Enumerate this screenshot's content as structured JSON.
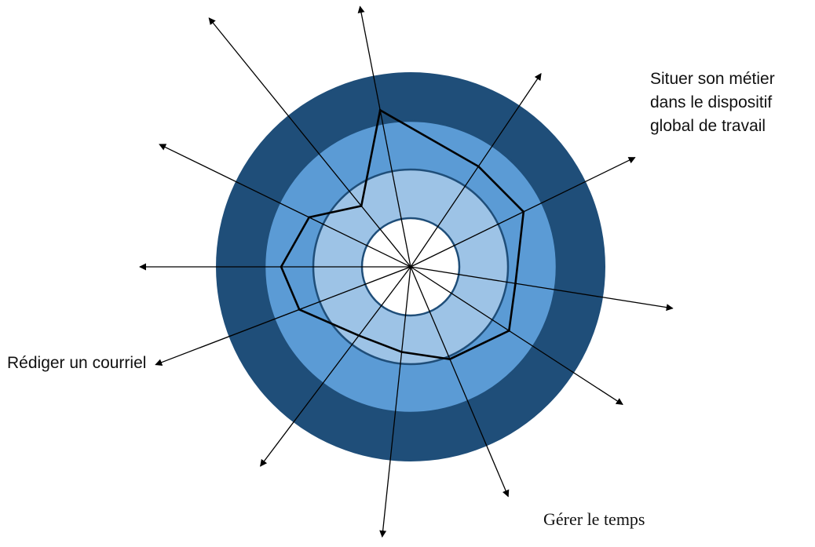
{
  "colors": {
    "ring_outer": "#1f4e79",
    "ring_middle": "#5b9bd5",
    "ring_inner": "#9dc3e6",
    "center": "#ffffff",
    "ring_stroke": "#1f4e79",
    "profile_line": "#000000",
    "axis_line": "#000000"
  },
  "chart_data": {
    "type": "radar",
    "levels": 4,
    "level_max": 4,
    "axis_count": 12,
    "axes": [
      {
        "label": "",
        "value": 3.28
      },
      {
        "label": "",
        "value": 2.49
      },
      {
        "label": "Situer son métier dans le dispositif global de travail",
        "label_lines": [
          "Situer son métier",
          "dans le dispositif",
          "global de travail"
        ],
        "value": 2.58
      },
      {
        "label": "",
        "value": 2.18
      },
      {
        "label": "",
        "value": 2.41
      },
      {
        "label": "Gérer le temps",
        "value": 2.06
      },
      {
        "label": "",
        "value": 1.76
      },
      {
        "label": "",
        "value": 1.77
      },
      {
        "label": "",
        "value": 2.45
      },
      {
        "label": "Rédiger un courriel",
        "value": 2.66
      },
      {
        "label": "",
        "value": 2.32
      },
      {
        "label": "",
        "value": 1.61
      }
    ]
  }
}
